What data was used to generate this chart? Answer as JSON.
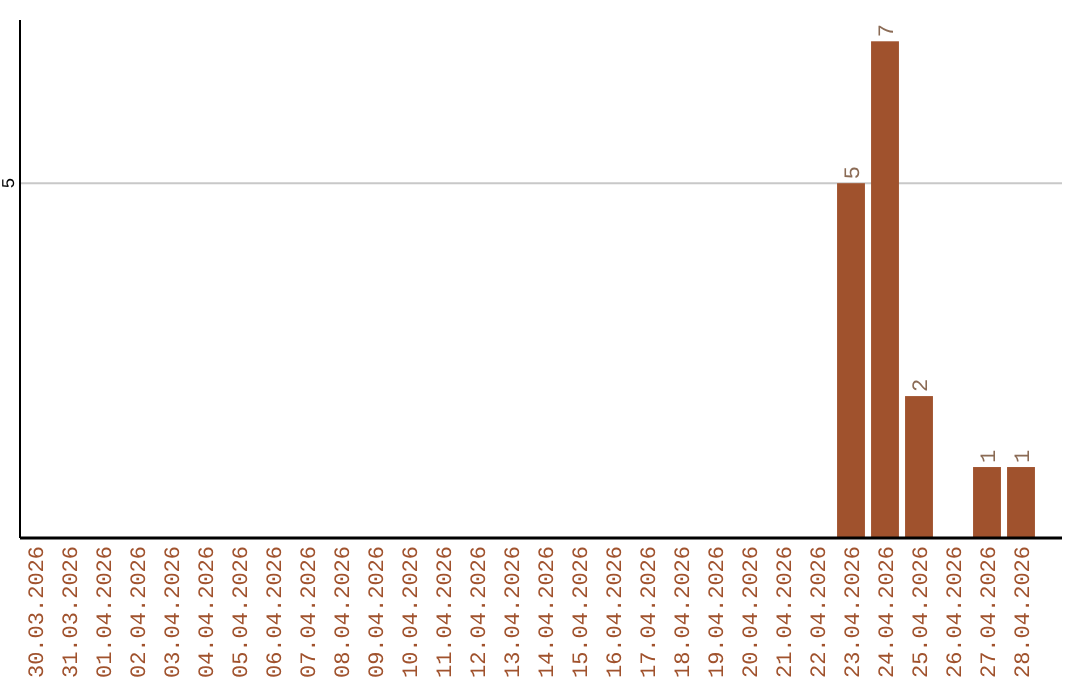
{
  "chart_data": {
    "type": "bar",
    "categories": [
      "30.03.2026",
      "31.03.2026",
      "01.04.2026",
      "02.04.2026",
      "03.04.2026",
      "04.04.2026",
      "05.04.2026",
      "06.04.2026",
      "07.04.2026",
      "08.04.2026",
      "09.04.2026",
      "10.04.2026",
      "11.04.2026",
      "12.04.2026",
      "13.04.2026",
      "14.04.2026",
      "15.04.2026",
      "16.04.2026",
      "17.04.2026",
      "18.04.2026",
      "19.04.2026",
      "20.04.2026",
      "21.04.2026",
      "22.04.2026",
      "23.04.2026",
      "24.04.2026",
      "25.04.2026",
      "26.04.2026",
      "27.04.2026",
      "28.04.2026"
    ],
    "values": [
      null,
      null,
      null,
      null,
      null,
      null,
      null,
      null,
      null,
      null,
      null,
      null,
      null,
      null,
      null,
      null,
      null,
      null,
      null,
      null,
      null,
      null,
      null,
      null,
      5,
      7,
      2,
      null,
      1,
      1
    ],
    "data_labels": true,
    "color": "#a0522d",
    "ylim": [
      0,
      7.3
    ],
    "yticks": [
      5
    ],
    "grid": "y"
  }
}
